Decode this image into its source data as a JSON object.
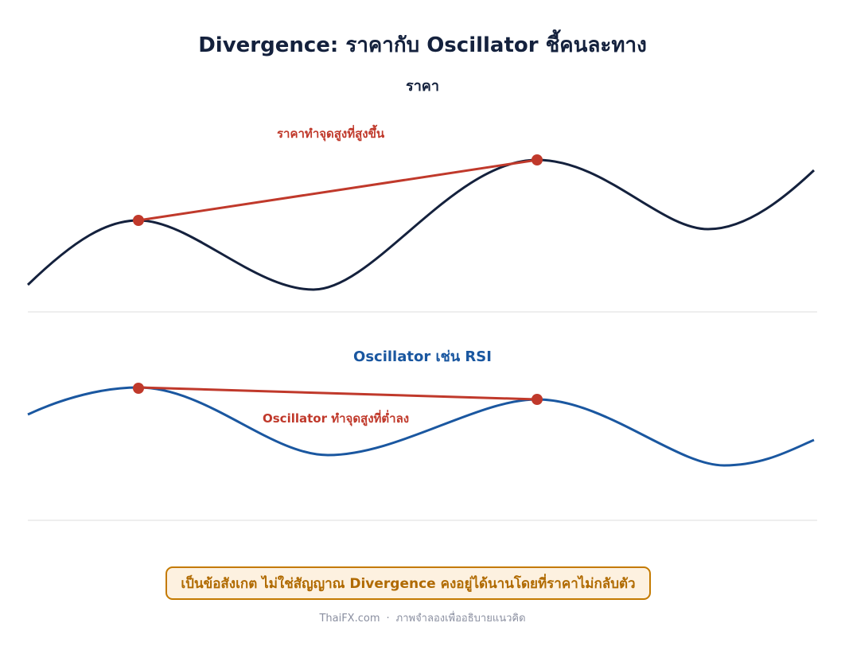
{
  "title": "Divergence: ราคากับ Oscillator ชี้คนละทาง",
  "price_panel": {
    "label": "ราคา",
    "annotation": "ราคาทำจุดสูงที่สูงขึ้น",
    "line_color": "#14213d"
  },
  "oscillator_panel": {
    "label": "Oscillator เช่น RSI",
    "annotation": "Oscillator ทำจุดสูงที่ต่ำลง",
    "line_color": "#1a57a0"
  },
  "highlight_color": "#c0392b",
  "note": "เป็นข้อสังเกต ไม่ใช่สัญญาณ  Divergence คงอยู่ได้นานโดยที่ราคาไม่กลับตัว",
  "footer": {
    "site": "ThaiFX.com",
    "separator": "·",
    "caption": "ภาพจำลองเพื่ออธิบายแนวคิด"
  }
}
